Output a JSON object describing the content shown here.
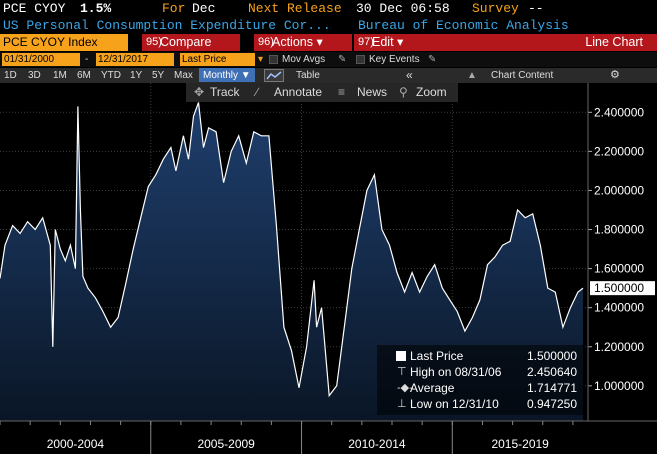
{
  "header": {
    "ticker": "PCE CYOY",
    "last_value": "1.5%",
    "for_label": "For",
    "for_value": "Dec",
    "next_release_label": "Next Release",
    "next_release_value": "30 Dec 06:58",
    "survey_label": "Survey",
    "survey_value": "--"
  },
  "description": {
    "name": "US Personal Consumption Expenditure Cor...",
    "source": "Bureau of Economic Analysis"
  },
  "function_bar": {
    "security": "PCE CYOY Index",
    "buttons": [
      {
        "num": "95)",
        "label": "Compare"
      },
      {
        "num": "96)",
        "label": "Actions ▾"
      },
      {
        "num": "97)",
        "label": "Edit ▾"
      }
    ],
    "chart_name": "Line Chart"
  },
  "controls": {
    "start_date": "01/31/2000",
    "dash": "-",
    "end_date": "12/31/2017",
    "field": "Last Price",
    "mov_avgs": "Mov Avgs",
    "key_events": "Key Events"
  },
  "periods": {
    "items": [
      "1D",
      "3D",
      "1M",
      "6M",
      "YTD",
      "1Y",
      "5Y",
      "Max"
    ],
    "frequency": "Monthly ▼",
    "table": "Table",
    "collapse": "«",
    "chart_content": "Chart Content",
    "settings_icon": "gear-icon"
  },
  "toolbar": {
    "track": "Track",
    "annotate": "Annotate",
    "news": "News",
    "zoom": "Zoom"
  },
  "legend": {
    "last_price_label": "Last Price",
    "last_price_value": "1.500000",
    "high_label": "High on 08/31/06",
    "high_value": "2.450640",
    "average_label": "Average",
    "average_value": "1.714771",
    "low_label": "Low on 12/31/10",
    "low_value": "0.947250"
  },
  "colors": {
    "amber": "#f7a21b",
    "function_red": "#b3171c",
    "description_blue": "#3aa6e8",
    "line": "#ffffff",
    "area_top": "#1f3f6e",
    "area_bottom": "#0a1626"
  },
  "chart_data": {
    "type": "area",
    "title": "",
    "xlabel": "",
    "ylabel": "",
    "x_period_labels": [
      "2000-2004",
      "2005-2009",
      "2010-2014",
      "2015-2019"
    ],
    "y_ticks": [
      "2.400000",
      "2.200000",
      "2.000000",
      "1.800000",
      "1.600000",
      "1.400000",
      "1.200000",
      "1.000000"
    ],
    "ylim": [
      0.82,
      2.55
    ],
    "xlim": [
      "2000-01",
      "2019-07"
    ],
    "last_value_label": "1.500000",
    "grid": true,
    "series": [
      {
        "points": [
          [
            "2000-01",
            1.55
          ],
          [
            "2000-03",
            1.72
          ],
          [
            "2000-06",
            1.82
          ],
          [
            "2000-09",
            1.78
          ],
          [
            "2000-12",
            1.84
          ],
          [
            "2001-03",
            1.8
          ],
          [
            "2001-06",
            1.86
          ],
          [
            "2001-09",
            1.72
          ],
          [
            "2001-10",
            1.2
          ],
          [
            "2001-11",
            1.8
          ],
          [
            "2002-01",
            1.7
          ],
          [
            "2002-03",
            1.64
          ],
          [
            "2002-05",
            1.72
          ],
          [
            "2002-07",
            1.6
          ],
          [
            "2002-08",
            2.43
          ],
          [
            "2002-09",
            1.9
          ],
          [
            "2002-10",
            1.56
          ],
          [
            "2002-12",
            1.5
          ],
          [
            "2003-03",
            1.45
          ],
          [
            "2003-06",
            1.38
          ],
          [
            "2003-09",
            1.3
          ],
          [
            "2003-12",
            1.35
          ],
          [
            "2004-03",
            1.52
          ],
          [
            "2004-06",
            1.7
          ],
          [
            "2004-09",
            1.86
          ],
          [
            "2004-12",
            2.02
          ],
          [
            "2005-03",
            2.08
          ],
          [
            "2005-06",
            2.16
          ],
          [
            "2005-09",
            2.22
          ],
          [
            "2005-11",
            2.1
          ],
          [
            "2006-02",
            2.28
          ],
          [
            "2006-04",
            2.16
          ],
          [
            "2006-06",
            2.38
          ],
          [
            "2006-08",
            2.45
          ],
          [
            "2006-10",
            2.22
          ],
          [
            "2006-12",
            2.32
          ],
          [
            "2007-03",
            2.3
          ],
          [
            "2007-06",
            2.04
          ],
          [
            "2007-09",
            2.2
          ],
          [
            "2007-12",
            2.28
          ],
          [
            "2008-03",
            2.14
          ],
          [
            "2008-06",
            2.3
          ],
          [
            "2008-09",
            2.28
          ],
          [
            "2008-12",
            2.28
          ],
          [
            "2009-03",
            1.82
          ],
          [
            "2009-06",
            1.3
          ],
          [
            "2009-09",
            1.18
          ],
          [
            "2009-12",
            0.99
          ],
          [
            "2010-03",
            1.2
          ],
          [
            "2010-06",
            1.54
          ],
          [
            "2010-07",
            1.3
          ],
          [
            "2010-09",
            1.4
          ],
          [
            "2010-12",
            0.95
          ],
          [
            "2011-03",
            1.0
          ],
          [
            "2011-06",
            1.3
          ],
          [
            "2011-09",
            1.6
          ],
          [
            "2011-12",
            1.8
          ],
          [
            "2012-03",
            2.0
          ],
          [
            "2012-06",
            2.08
          ],
          [
            "2012-09",
            1.8
          ],
          [
            "2012-12",
            1.72
          ],
          [
            "2013-03",
            1.58
          ],
          [
            "2013-06",
            1.48
          ],
          [
            "2013-09",
            1.58
          ],
          [
            "2013-12",
            1.48
          ],
          [
            "2014-03",
            1.56
          ],
          [
            "2014-06",
            1.62
          ],
          [
            "2014-09",
            1.5
          ],
          [
            "2014-12",
            1.44
          ],
          [
            "2015-03",
            1.38
          ],
          [
            "2015-06",
            1.28
          ],
          [
            "2015-09",
            1.35
          ],
          [
            "2015-12",
            1.44
          ],
          [
            "2016-03",
            1.62
          ],
          [
            "2016-06",
            1.66
          ],
          [
            "2016-09",
            1.72
          ],
          [
            "2016-12",
            1.74
          ],
          [
            "2017-03",
            1.9
          ],
          [
            "2017-06",
            1.86
          ],
          [
            "2017-09",
            1.88
          ],
          [
            "2017-12",
            1.72
          ],
          [
            "2018-03",
            1.5
          ],
          [
            "2018-06",
            1.48
          ],
          [
            "2018-09",
            1.3
          ],
          [
            "2018-12",
            1.4
          ],
          [
            "2019-03",
            1.48
          ],
          [
            "2019-05",
            1.5
          ]
        ]
      }
    ]
  }
}
